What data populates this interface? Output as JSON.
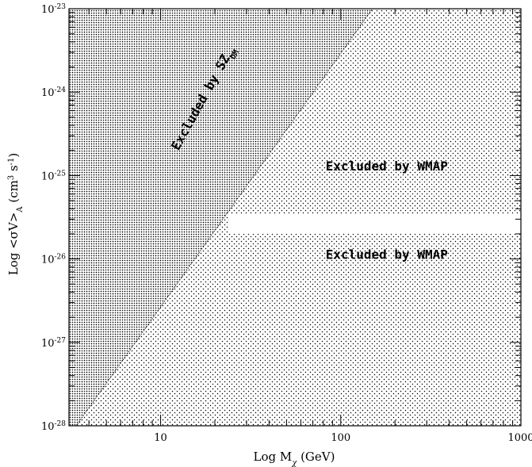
{
  "chart_data": {
    "type": "area",
    "title": "",
    "xlabel": "Log M",
    "xlabel_sub": "χ",
    "xlabel_unit": " (GeV)",
    "ylabel": "Log <σV>",
    "ylabel_sub": "A",
    "ylabel_unit_open": " (cm",
    "ylabel_unit_exp1": "3",
    "ylabel_unit_mid": " s",
    "ylabel_unit_exp2": "-1",
    "ylabel_unit_close": ")",
    "x_scale": "log",
    "y_scale": "log",
    "xlim": [
      3.1,
      1000
    ],
    "ylim": [
      1e-28,
      1e-23
    ],
    "x_ticks": [
      {
        "value": 10,
        "label": "10"
      },
      {
        "value": 100,
        "label": "100"
      },
      {
        "value": 1000,
        "label": "1000"
      }
    ],
    "y_ticks": [
      {
        "value": 1e-23,
        "base": "10",
        "exp": "-23"
      },
      {
        "value": 1e-24,
        "base": "10",
        "exp": "-24"
      },
      {
        "value": 1e-25,
        "base": "10",
        "exp": "-25"
      },
      {
        "value": 1e-26,
        "base": "10",
        "exp": "-26"
      },
      {
        "value": 1e-27,
        "base": "10",
        "exp": "-27"
      },
      {
        "value": 1e-28,
        "base": "10",
        "exp": "-28"
      }
    ],
    "regions": [
      {
        "name": "Excluded by WMAP (upper)",
        "y_range": [
          3.5e-26,
          1e-23
        ],
        "label": "Excluded by WMAP",
        "label_at": [
          180,
          1.15e-25
        ]
      },
      {
        "name": "Excluded by WMAP (lower)",
        "y_range": [
          1e-28,
          2e-26
        ],
        "label": "Excluded by WMAP",
        "label_at": [
          180,
          1e-26
        ]
      },
      {
        "name": "Excluded by SZ_DM",
        "boundary": [
          [
            3.4,
            1e-28
          ],
          [
            150,
            1e-23
          ]
        ],
        "label": "Excluded by SZ",
        "label_sub": "DM",
        "label_at": [
          18,
          8e-25
        ]
      }
    ],
    "allowed_band": {
      "x_from": 24,
      "y_range": [
        2e-26,
        3.5e-26
      ]
    },
    "grid": false,
    "legend": "none"
  }
}
